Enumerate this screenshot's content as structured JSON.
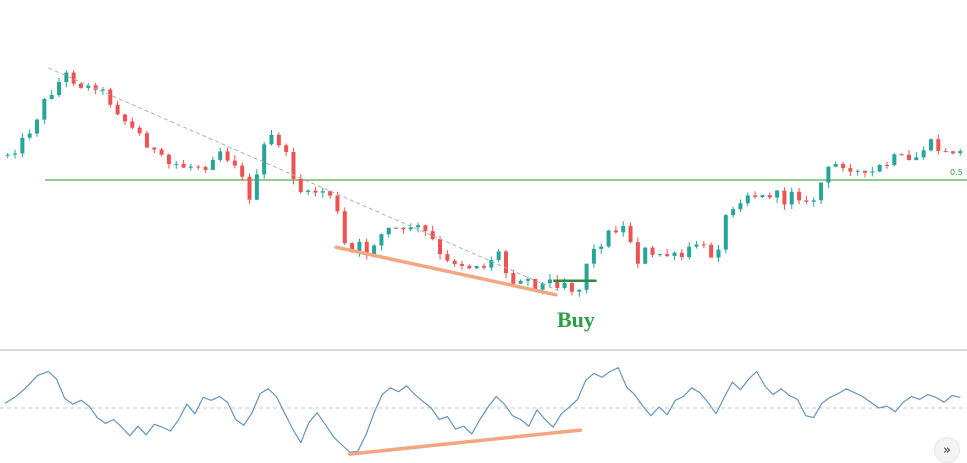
{
  "chart_data": [
    {
      "type": "candlestick",
      "panel": "price",
      "title": "",
      "xlabel": "",
      "ylabel": "",
      "ylim": [
        0.0,
        1.0
      ],
      "grid": false,
      "axes_visible": false,
      "colors": {
        "up": "#26a69a",
        "down": "#ef5350",
        "level": "#4caf50",
        "trendline": "#f4a582",
        "guide": "#b0b0b0"
      },
      "close_path": [
        [
          0,
          0.41
        ],
        [
          5,
          0.38
        ],
        [
          10,
          0.31
        ],
        [
          15,
          0.21
        ],
        [
          20,
          0.15
        ],
        [
          23,
          0.12
        ],
        [
          26,
          0.15
        ],
        [
          30,
          0.17
        ],
        [
          34,
          0.16
        ],
        [
          38,
          0.21
        ],
        [
          42,
          0.26
        ],
        [
          46,
          0.31
        ],
        [
          50,
          0.34
        ],
        [
          54,
          0.39
        ],
        [
          58,
          0.43
        ],
        [
          61,
          0.45
        ],
        [
          64,
          0.44
        ],
        [
          67,
          0.46
        ],
        [
          70,
          0.44
        ],
        [
          73,
          0.46
        ],
        [
          76,
          0.42
        ],
        [
          79,
          0.39
        ],
        [
          82,
          0.42
        ],
        [
          85,
          0.44
        ],
        [
          87,
          0.49
        ],
        [
          90,
          0.56
        ],
        [
          93,
          0.49
        ],
        [
          96,
          0.36
        ],
        [
          99,
          0.34
        ],
        [
          102,
          0.38
        ],
        [
          105,
          0.45
        ],
        [
          108,
          0.53
        ],
        [
          111,
          0.56
        ],
        [
          114,
          0.54
        ],
        [
          117,
          0.54
        ],
        [
          120,
          0.55
        ],
        [
          122,
          0.6
        ],
        [
          125,
          0.73
        ],
        [
          128,
          0.76
        ],
        [
          131,
          0.73
        ],
        [
          134,
          0.77
        ],
        [
          137,
          0.7
        ],
        [
          140,
          0.69
        ],
        [
          143,
          0.66
        ],
        [
          146,
          0.7
        ],
        [
          149,
          0.66
        ],
        [
          152,
          0.67
        ],
        [
          155,
          0.69
        ],
        [
          158,
          0.72
        ],
        [
          161,
          0.79
        ],
        [
          164,
          0.8
        ],
        [
          167,
          0.78
        ],
        [
          170,
          0.82
        ],
        [
          173,
          0.79
        ],
        [
          176,
          0.82
        ],
        [
          179,
          0.78
        ],
        [
          182,
          0.76
        ],
        [
          185,
          0.84
        ],
        [
          188,
          0.86
        ],
        [
          191,
          0.84
        ],
        [
          194,
          0.87
        ],
        [
          197,
          0.88
        ],
        [
          200,
          0.86
        ],
        [
          203,
          0.87
        ],
        [
          206,
          0.86
        ],
        [
          209,
          0.89
        ],
        [
          212,
          0.89
        ],
        [
          215,
          0.76
        ],
        [
          218,
          0.75
        ],
        [
          221,
          0.7
        ],
        [
          224,
          0.68
        ],
        [
          227,
          0.66
        ],
        [
          230,
          0.7
        ],
        [
          233,
          0.79
        ],
        [
          236,
          0.75
        ],
        [
          239,
          0.78
        ],
        [
          242,
          0.76
        ],
        [
          245,
          0.77
        ],
        [
          248,
          0.78
        ],
        [
          251,
          0.77
        ],
        [
          254,
          0.72
        ],
        [
          257,
          0.74
        ],
        [
          260,
          0.77
        ],
        [
          263,
          0.73
        ],
        [
          266,
          0.62
        ],
        [
          269,
          0.58
        ],
        [
          272,
          0.56
        ],
        [
          275,
          0.54
        ],
        [
          278,
          0.57
        ],
        [
          281,
          0.55
        ],
        [
          284,
          0.55
        ],
        [
          287,
          0.58
        ],
        [
          290,
          0.53
        ],
        [
          293,
          0.56
        ],
        [
          296,
          0.6
        ],
        [
          299,
          0.55
        ],
        [
          302,
          0.48
        ],
        [
          305,
          0.45
        ],
        [
          308,
          0.44
        ],
        [
          311,
          0.45
        ],
        [
          314,
          0.47
        ],
        [
          317,
          0.49
        ],
        [
          320,
          0.47
        ],
        [
          323,
          0.45
        ],
        [
          326,
          0.44
        ],
        [
          329,
          0.41
        ],
        [
          332,
          0.44
        ],
        [
          335,
          0.43
        ],
        [
          338,
          0.39
        ],
        [
          341,
          0.37
        ],
        [
          344,
          0.39
        ],
        [
          347,
          0.41
        ],
        [
          350,
          0.39
        ],
        [
          353,
          0.41
        ]
      ],
      "horizontal_level": {
        "price": 0.5,
        "label": "0.5"
      },
      "annotations": [
        {
          "kind": "buy-signal",
          "label": "Buy",
          "time": 205,
          "price": 0.86
        },
        {
          "kind": "dashed-trendline",
          "from": [
            16,
            0.1
          ],
          "to": [
            205,
            0.9
          ]
        },
        {
          "kind": "divergence-line",
          "from": [
            122,
            0.74
          ],
          "to": [
            203,
            0.91
          ]
        },
        {
          "kind": "entry-marker",
          "from": [
            202,
            0.86
          ],
          "to": [
            218,
            0.86
          ]
        }
      ]
    },
    {
      "type": "line",
      "panel": "oscillator",
      "title": "",
      "xlabel": "",
      "ylabel": "",
      "ylim": [
        0,
        100
      ],
      "grid": false,
      "axes_visible": false,
      "colors": {
        "line": "#6496be",
        "midline": "#c8c8c8",
        "divergence": "#f4a582"
      },
      "midline": 50,
      "series": [
        {
          "values": [
            [
              0,
              55
            ],
            [
              4,
              62
            ],
            [
              8,
              72
            ],
            [
              12,
              84
            ],
            [
              16,
              88
            ],
            [
              19,
              80
            ],
            [
              22,
              60
            ],
            [
              25,
              54
            ],
            [
              28,
              58
            ],
            [
              31,
              52
            ],
            [
              34,
              40
            ],
            [
              37,
              34
            ],
            [
              40,
              38
            ],
            [
              43,
              30
            ],
            [
              46,
              21
            ],
            [
              49,
              31
            ],
            [
              52,
              22
            ],
            [
              55,
              33
            ],
            [
              58,
              30
            ],
            [
              61,
              26
            ],
            [
              64,
              38
            ],
            [
              67,
              54
            ],
            [
              70,
              44
            ],
            [
              73,
              61
            ],
            [
              76,
              58
            ],
            [
              79,
              62
            ],
            [
              82,
              56
            ],
            [
              85,
              38
            ],
            [
              88,
              32
            ],
            [
              91,
              45
            ],
            [
              94,
              65
            ],
            [
              97,
              70
            ],
            [
              100,
              62
            ],
            [
              103,
              45
            ],
            [
              106,
              28
            ],
            [
              109,
              14
            ],
            [
              112,
              35
            ],
            [
              115,
              45
            ],
            [
              118,
              33
            ],
            [
              121,
              20
            ],
            [
              124,
              12
            ],
            [
              127,
              4
            ],
            [
              130,
              5
            ],
            [
              133,
              22
            ],
            [
              136,
              45
            ],
            [
              139,
              64
            ],
            [
              142,
              71
            ],
            [
              145,
              67
            ],
            [
              148,
              73
            ],
            [
              151,
              64
            ],
            [
              154,
              57
            ],
            [
              157,
              50
            ],
            [
              160,
              38
            ],
            [
              163,
              41
            ],
            [
              166,
              28
            ],
            [
              169,
              31
            ],
            [
              172,
              23
            ],
            [
              175,
              38
            ],
            [
              178,
              51
            ],
            [
              181,
              62
            ],
            [
              184,
              54
            ],
            [
              187,
              42
            ],
            [
              190,
              38
            ],
            [
              193,
              31
            ],
            [
              196,
              48
            ],
            [
              199,
              38
            ],
            [
              202,
              30
            ],
            [
              205,
              44
            ],
            [
              208,
              51
            ],
            [
              211,
              59
            ],
            [
              214,
              79
            ],
            [
              217,
              86
            ],
            [
              220,
              82
            ],
            [
              223,
              88
            ],
            [
              226,
              92
            ],
            [
              229,
              72
            ],
            [
              232,
              64
            ],
            [
              235,
              52
            ],
            [
              238,
              42
            ],
            [
              241,
              51
            ],
            [
              244,
              43
            ],
            [
              247,
              58
            ],
            [
              250,
              62
            ],
            [
              253,
              71
            ],
            [
              256,
              66
            ],
            [
              259,
              56
            ],
            [
              262,
              44
            ],
            [
              265,
              61
            ],
            [
              268,
              77
            ],
            [
              271,
              69
            ],
            [
              274,
              80
            ],
            [
              277,
              88
            ],
            [
              280,
              73
            ],
            [
              283,
              64
            ],
            [
              286,
              70
            ],
            [
              289,
              63
            ],
            [
              292,
              59
            ],
            [
              295,
              42
            ],
            [
              298,
              40
            ],
            [
              301,
              55
            ],
            [
              304,
              61
            ],
            [
              307,
              65
            ],
            [
              310,
              70
            ],
            [
              313,
              66
            ],
            [
              316,
              62
            ],
            [
              319,
              56
            ],
            [
              322,
              50
            ],
            [
              325,
              52
            ],
            [
              328,
              46
            ],
            [
              331,
              56
            ],
            [
              334,
              62
            ],
            [
              337,
              59
            ],
            [
              340,
              64
            ],
            [
              343,
              61
            ],
            [
              346,
              56
            ],
            [
              349,
              63
            ],
            [
              352,
              61
            ]
          ]
        }
      ],
      "annotations": [
        {
          "kind": "divergence-line",
          "from": [
            127,
            2
          ],
          "to": [
            212,
            27
          ]
        }
      ]
    }
  ],
  "ui": {
    "buy_label": "Buy",
    "level_label": "0.5",
    "scroll_button_glyph": "»",
    "scroll_icon": "double-chevron-right-icon"
  }
}
